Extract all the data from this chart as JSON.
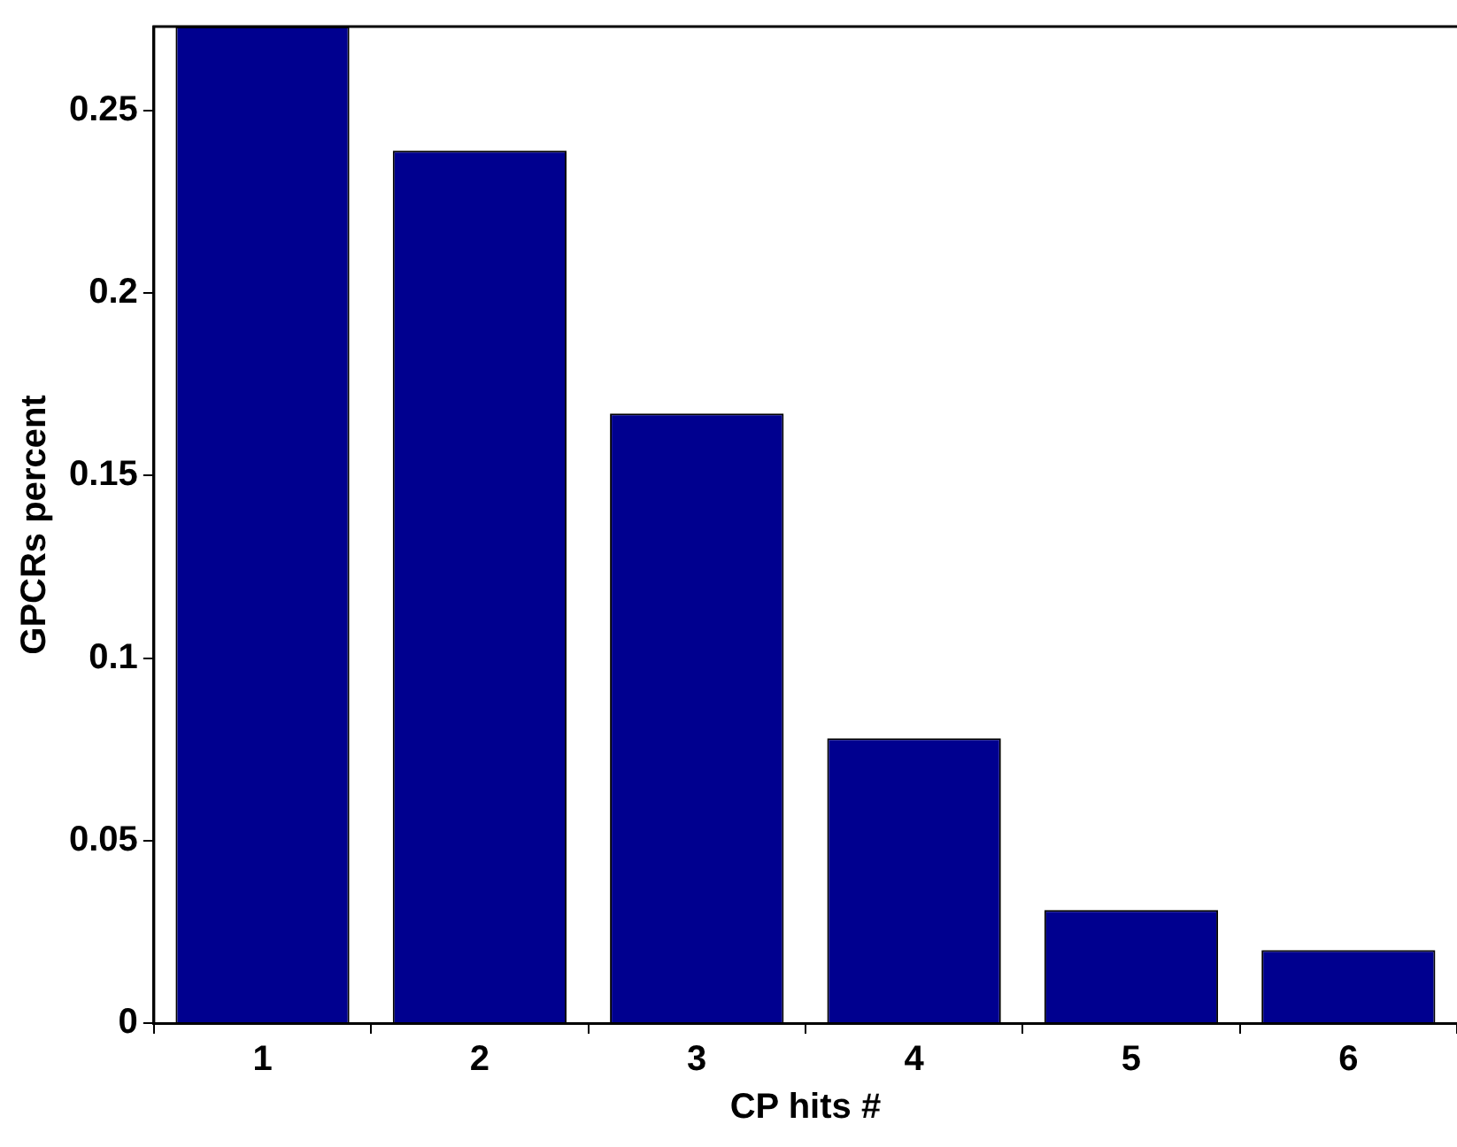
{
  "chart_data": {
    "type": "bar",
    "xlabel": "CP hits #",
    "ylabel": "GPCRs percent",
    "categories": [
      "1",
      "2",
      "3",
      "4",
      "5",
      "6"
    ],
    "values": [
      0.273,
      0.239,
      0.167,
      0.078,
      0.031,
      0.02
    ],
    "color": "#00008f",
    "ylim": [
      0,
      0.273
    ],
    "yticks": [
      0,
      0.05,
      0.1,
      0.15,
      0.2,
      0.25
    ],
    "grid": false,
    "legend": false
  }
}
